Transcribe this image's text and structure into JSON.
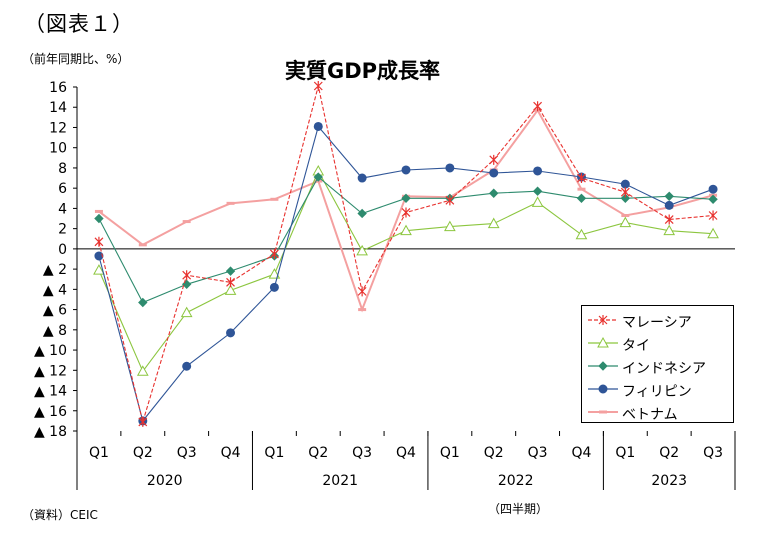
{
  "figure_label": "（図表１）",
  "unit_label": "（前年同期比、%）",
  "source_label": "（資料）CEIC",
  "period_label": "（四半期）",
  "chart_data": {
    "type": "line",
    "title": "実質GDP成長率",
    "xlabel": "",
    "ylabel": "",
    "ylim": [
      -18,
      16
    ],
    "yticks": [
      16,
      14,
      12,
      10,
      8,
      6,
      4,
      2,
      0,
      -2,
      -4,
      -6,
      -8,
      -10,
      -12,
      -14,
      -16,
      -18
    ],
    "ytick_labels": [
      "16",
      "14",
      "12",
      "10",
      "8",
      "6",
      "4",
      "2",
      "0",
      "▲ 2",
      "▲ 4",
      "▲ 6",
      "▲ 8",
      "▲ 10",
      "▲ 12",
      "▲ 14",
      "▲ 16",
      "▲ 18"
    ],
    "categories": [
      "Q1",
      "Q2",
      "Q3",
      "Q4",
      "Q1",
      "Q2",
      "Q3",
      "Q4",
      "Q1",
      "Q2",
      "Q3",
      "Q4",
      "Q1",
      "Q2",
      "Q3"
    ],
    "year_groups": [
      {
        "label": "2020",
        "count": 4
      },
      {
        "label": "2021",
        "count": 4
      },
      {
        "label": "2022",
        "count": 4
      },
      {
        "label": "2023",
        "count": 3
      }
    ],
    "grid": false,
    "legend_position": "bottom-right",
    "series": [
      {
        "name": "マレーシア",
        "color": "#e8322f",
        "marker": "star",
        "dashed": true,
        "values": [
          0.7,
          -17.1,
          -2.6,
          -3.3,
          -0.5,
          16.1,
          -4.2,
          3.6,
          4.8,
          8.8,
          14.1,
          7.0,
          5.6,
          2.9,
          3.3
        ]
      },
      {
        "name": "タイ",
        "color": "#8cc63f",
        "marker": "triangle",
        "dashed": false,
        "values": [
          -2.1,
          -12.1,
          -6.3,
          -4.1,
          -2.5,
          7.7,
          -0.2,
          1.8,
          2.2,
          2.5,
          4.6,
          1.4,
          2.6,
          1.8,
          1.5
        ]
      },
      {
        "name": "インドネシア",
        "color": "#2e8b6e",
        "marker": "diamond",
        "dashed": false,
        "values": [
          3.0,
          -5.3,
          -3.5,
          -2.2,
          -0.7,
          7.1,
          3.5,
          5.0,
          5.0,
          5.5,
          5.7,
          5.0,
          5.0,
          5.2,
          4.9
        ]
      },
      {
        "name": "フィリピン",
        "color": "#2f5597",
        "marker": "circle",
        "dashed": false,
        "values": [
          -0.7,
          -17.0,
          -11.6,
          -8.3,
          -3.8,
          12.1,
          7.0,
          7.8,
          8.0,
          7.5,
          7.7,
          7.1,
          6.4,
          4.3,
          5.9
        ]
      },
      {
        "name": "ベトナム",
        "color": "#f4a0a0",
        "marker": "dash",
        "dashed": false,
        "values": [
          3.7,
          0.4,
          2.7,
          4.5,
          4.9,
          6.7,
          -6.0,
          5.2,
          5.1,
          7.8,
          13.7,
          5.9,
          3.3,
          4.1,
          5.3
        ]
      }
    ]
  }
}
